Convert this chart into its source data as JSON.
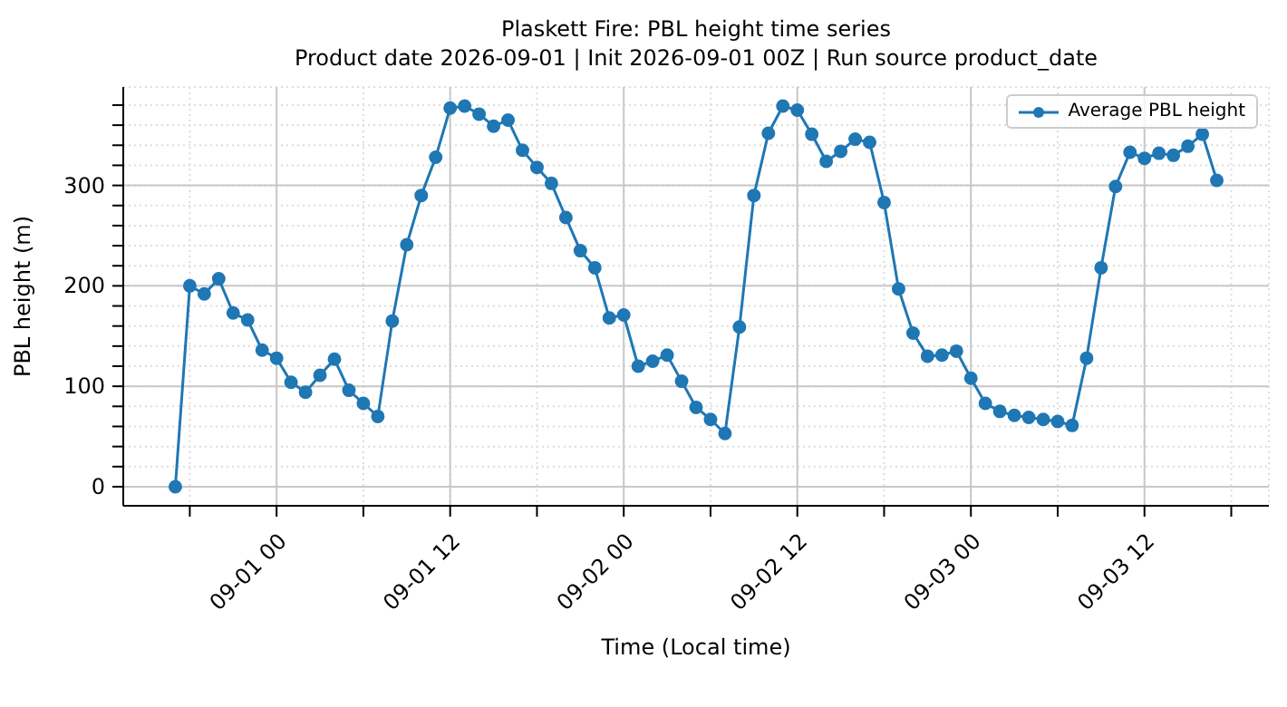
{
  "chart_data": {
    "type": "line",
    "title": "Plaskett Fire: PBL height time series",
    "subtitle": "Product date 2026-09-01 | Init 2026-09-01 00Z | Run source product_date",
    "xlabel": "Time (Local time)",
    "ylabel": "PBL height (m)",
    "x": [
      "2026-08-31T17:00",
      "2026-08-31T18:00",
      "2026-08-31T19:00",
      "2026-08-31T20:00",
      "2026-08-31T21:00",
      "2026-08-31T22:00",
      "2026-08-31T23:00",
      "2026-09-01T00:00",
      "2026-09-01T01:00",
      "2026-09-01T02:00",
      "2026-09-01T03:00",
      "2026-09-01T04:00",
      "2026-09-01T05:00",
      "2026-09-01T06:00",
      "2026-09-01T07:00",
      "2026-09-01T08:00",
      "2026-09-01T09:00",
      "2026-09-01T10:00",
      "2026-09-01T11:00",
      "2026-09-01T12:00",
      "2026-09-01T13:00",
      "2026-09-01T14:00",
      "2026-09-01T15:00",
      "2026-09-01T16:00",
      "2026-09-01T17:00",
      "2026-09-01T18:00",
      "2026-09-01T19:00",
      "2026-09-01T20:00",
      "2026-09-01T21:00",
      "2026-09-01T22:00",
      "2026-09-01T23:00",
      "2026-09-02T00:00",
      "2026-09-02T01:00",
      "2026-09-02T02:00",
      "2026-09-02T03:00",
      "2026-09-02T04:00",
      "2026-09-02T05:00",
      "2026-09-02T06:00",
      "2026-09-02T07:00",
      "2026-09-02T08:00",
      "2026-09-02T09:00",
      "2026-09-02T10:00",
      "2026-09-02T11:00",
      "2026-09-02T12:00",
      "2026-09-02T13:00",
      "2026-09-02T14:00",
      "2026-09-02T15:00",
      "2026-09-02T16:00",
      "2026-09-02T17:00",
      "2026-09-02T18:00",
      "2026-09-02T19:00",
      "2026-09-02T20:00",
      "2026-09-02T21:00",
      "2026-09-02T22:00",
      "2026-09-02T23:00",
      "2026-09-03T00:00",
      "2026-09-03T01:00",
      "2026-09-03T02:00",
      "2026-09-03T03:00",
      "2026-09-03T04:00",
      "2026-09-03T05:00",
      "2026-09-03T06:00",
      "2026-09-03T07:00",
      "2026-09-03T08:00",
      "2026-09-03T09:00",
      "2026-09-03T10:00",
      "2026-09-03T11:00",
      "2026-09-03T12:00",
      "2026-09-03T13:00",
      "2026-09-03T14:00",
      "2026-09-03T15:00",
      "2026-09-03T16:00",
      "2026-09-03T17:00"
    ],
    "series": [
      {
        "name": "Average PBL height",
        "color": "#1f77b4",
        "values": [
          0,
          200,
          192,
          207,
          173,
          166,
          136,
          128,
          104,
          94,
          111,
          127,
          96,
          83,
          70,
          165,
          241,
          290,
          328,
          377,
          379,
          371,
          359,
          365,
          335,
          318,
          302,
          268,
          235,
          218,
          168,
          171,
          120,
          125,
          131,
          105,
          79,
          67,
          53,
          159,
          290,
          352,
          379,
          375,
          351,
          324,
          334,
          346,
          343,
          283,
          197,
          153,
          130,
          131,
          135,
          108,
          83,
          75,
          71,
          69,
          67,
          65,
          61,
          128,
          218,
          299,
          333,
          327,
          332,
          330,
          339,
          351,
          305
        ]
      }
    ],
    "xlim": [
      "2026-08-31T13:24",
      "2026-09-03T20:36"
    ],
    "xticks": [
      {
        "value": "2026-08-31T18:00",
        "label": null
      },
      {
        "value": "2026-09-01T00:00",
        "label": "09-01 00"
      },
      {
        "value": "2026-09-01T06:00",
        "label": null
      },
      {
        "value": "2026-09-01T12:00",
        "label": "09-01 12"
      },
      {
        "value": "2026-09-01T18:00",
        "label": null
      },
      {
        "value": "2026-09-02T00:00",
        "label": "09-02 00"
      },
      {
        "value": "2026-09-02T06:00",
        "label": null
      },
      {
        "value": "2026-09-02T12:00",
        "label": "09-02 12"
      },
      {
        "value": "2026-09-02T18:00",
        "label": null
      },
      {
        "value": "2026-09-03T00:00",
        "label": "09-03 00"
      },
      {
        "value": "2026-09-03T06:00",
        "label": null
      },
      {
        "value": "2026-09-03T12:00",
        "label": "09-03 12"
      },
      {
        "value": "2026-09-03T18:00",
        "label": null
      }
    ],
    "ylim": [
      -19,
      398
    ],
    "yticks": [
      0,
      {
        "value": 20,
        "label": null
      },
      {
        "value": 40,
        "label": null
      },
      {
        "value": 60,
        "label": null
      },
      {
        "value": 80,
        "label": null
      },
      100,
      {
        "value": 120,
        "label": null
      },
      {
        "value": 140,
        "label": null
      },
      {
        "value": 160,
        "label": null
      },
      {
        "value": 180,
        "label": null
      },
      200,
      {
        "value": 220,
        "label": null
      },
      {
        "value": 240,
        "label": null
      },
      {
        "value": 260,
        "label": null
      },
      {
        "value": 280,
        "label": null
      },
      300,
      {
        "value": 320,
        "label": null
      },
      {
        "value": 340,
        "label": null
      },
      {
        "value": 360,
        "label": null
      },
      {
        "value": 380,
        "label": null
      }
    ],
    "grid": true,
    "legend": "top right",
    "marker": "circle",
    "line_style": "solid"
  }
}
